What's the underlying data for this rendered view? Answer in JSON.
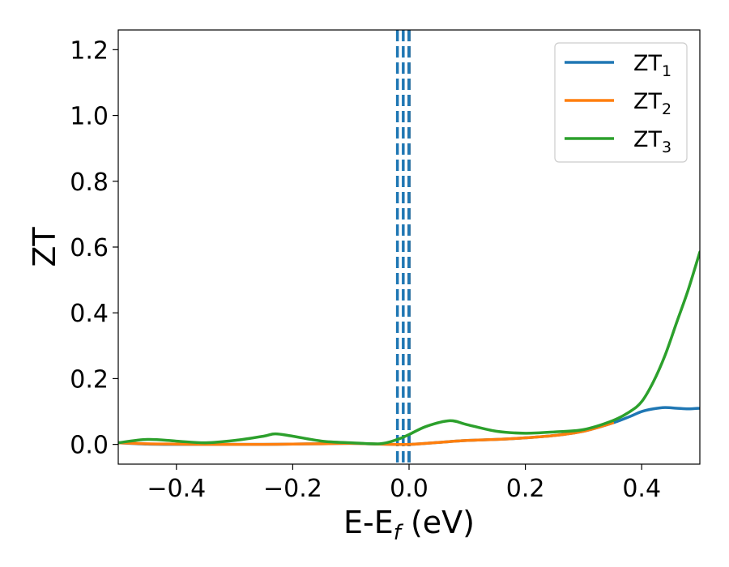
{
  "chart_data": {
    "type": "line",
    "xlabel": "E-E",
    "xlabel_sub": "f",
    "xlabel_unit": " (eV)",
    "ylabel": "ZT",
    "xlim": [
      -0.5,
      0.5
    ],
    "ylim": [
      -0.06,
      1.26
    ],
    "grid": false,
    "legend_position": "top-right",
    "xticks": [
      {
        "value": -0.4,
        "label": "−0.4"
      },
      {
        "value": -0.2,
        "label": "−0.2"
      },
      {
        "value": 0.0,
        "label": "0.0"
      },
      {
        "value": 0.2,
        "label": "0.2"
      },
      {
        "value": 0.4,
        "label": "0.4"
      }
    ],
    "yticks": [
      {
        "value": 0.0,
        "label": "0.0"
      },
      {
        "value": 0.2,
        "label": "0.2"
      },
      {
        "value": 0.4,
        "label": "0.4"
      },
      {
        "value": 0.6,
        "label": "0.6"
      },
      {
        "value": 0.8,
        "label": "0.8"
      },
      {
        "value": 1.0,
        "label": "1.0"
      },
      {
        "value": 1.2,
        "label": "1.2"
      }
    ],
    "vlines": [
      {
        "x": -0.02,
        "color": "#1f77b4",
        "style": "dashed"
      },
      {
        "x": -0.01,
        "color": "#1f77b4",
        "style": "dashed"
      },
      {
        "x": 0.0,
        "color": "#000000",
        "style": "dashed"
      },
      {
        "x": 0.0,
        "color": "#1f77b4",
        "style": "dashed"
      }
    ],
    "series": [
      {
        "name": "ZT",
        "sub": "1",
        "color": "#1f77b4",
        "x": [
          -0.5,
          -0.45,
          -0.4,
          -0.35,
          -0.3,
          -0.25,
          -0.2,
          -0.15,
          -0.1,
          -0.05,
          0.0,
          0.05,
          0.1,
          0.15,
          0.2,
          0.25,
          0.3,
          0.35,
          0.38,
          0.4,
          0.42,
          0.44,
          0.46,
          0.48,
          0.5
        ],
        "y": [
          0.005,
          0.001,
          0.0,
          0.0,
          0.0,
          0.0,
          0.001,
          0.002,
          0.003,
          0.001,
          0.0,
          0.006,
          0.012,
          0.015,
          0.02,
          0.027,
          0.04,
          0.065,
          0.085,
          0.1,
          0.108,
          0.112,
          0.11,
          0.108,
          0.11
        ]
      },
      {
        "name": "ZT",
        "sub": "2",
        "color": "#ff7f0e",
        "x": [
          -0.5,
          -0.45,
          -0.4,
          -0.35,
          -0.3,
          -0.25,
          -0.2,
          -0.15,
          -0.1,
          -0.05,
          0.0,
          0.05,
          0.1,
          0.15,
          0.2,
          0.25,
          0.3,
          0.35
        ],
        "y": [
          0.005,
          0.002,
          0.001,
          0.0,
          0.0,
          0.0,
          0.001,
          0.002,
          0.003,
          0.001,
          0.0,
          0.006,
          0.012,
          0.015,
          0.02,
          0.027,
          0.04,
          0.065
        ]
      },
      {
        "name": "ZT",
        "sub": "3",
        "color": "#2ca02c",
        "x": [
          -0.5,
          -0.45,
          -0.4,
          -0.35,
          -0.3,
          -0.25,
          -0.23,
          -0.2,
          -0.15,
          -0.1,
          -0.05,
          -0.02,
          0.0,
          0.03,
          0.07,
          0.1,
          0.15,
          0.2,
          0.25,
          0.3,
          0.35,
          0.38,
          0.4,
          0.42,
          0.44,
          0.46,
          0.48,
          0.5
        ],
        "y": [
          0.005,
          0.015,
          0.01,
          0.005,
          0.012,
          0.025,
          0.032,
          0.025,
          0.01,
          0.005,
          0.002,
          0.015,
          0.03,
          0.055,
          0.072,
          0.06,
          0.04,
          0.034,
          0.038,
          0.045,
          0.072,
          0.1,
          0.13,
          0.19,
          0.27,
          0.37,
          0.47,
          0.585
        ]
      }
    ]
  }
}
